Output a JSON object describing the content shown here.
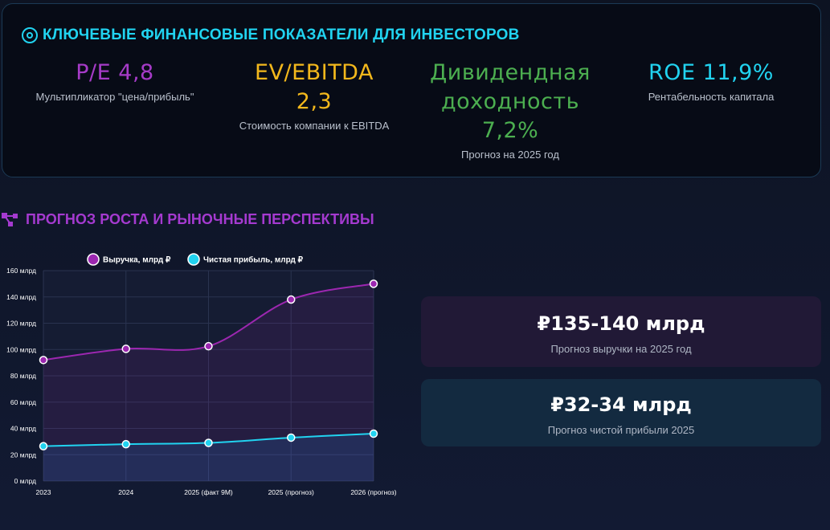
{
  "kpi_section": {
    "title": "КЛЮЧЕВЫЕ ФИНАНСОВЫЕ ПОКАЗАТЕЛИ ДЛЯ ИНВЕСТОРОВ",
    "icon": "target-icon",
    "items": [
      {
        "value_lines": [
          "P/E 4,8"
        ],
        "desc": "Мультипликатор \"цена/прибыль\"",
        "color": "#a63bc8"
      },
      {
        "value_lines": [
          "EV/EBITDA",
          "2,3"
        ],
        "desc": "Стоимость компании к EBITDA",
        "color": "#f3b81c"
      },
      {
        "value_lines": [
          "Дивидендная",
          "доходность",
          "7,2%"
        ],
        "desc": "Прогноз на 2025 год",
        "color": "#4caf50"
      },
      {
        "value_lines": [
          "ROE 11,9%"
        ],
        "desc": "Рентабельность капитала",
        "color": "#21d3f0"
      }
    ]
  },
  "growth_section": {
    "title": "ПРОГНОЗ РОСТА И РЫНОЧНЫЕ ПЕРСПЕКТИВЫ",
    "icon": "share-nodes-icon"
  },
  "chart_data": {
    "type": "line",
    "categories": [
      "2023",
      "2024",
      "2025 (факт 9М)",
      "2025 (прогноз)",
      "2026 (прогноз)"
    ],
    "series": [
      {
        "name": "Выручка, млрд ₽",
        "values": [
          92,
          100.5,
          102.5,
          138,
          150
        ],
        "color": "#9c27b0"
      },
      {
        "name": "Чистая прибыль, млрд ₽",
        "values": [
          26.5,
          28,
          29,
          33,
          36
        ],
        "color": "#21d3f0"
      }
    ],
    "ylim": [
      0,
      160
    ],
    "yticks": [
      0,
      20,
      40,
      60,
      80,
      100,
      120,
      140,
      160
    ],
    "ytick_labels": [
      "0 млрд",
      "20 млрд",
      "40 млрд",
      "60 млрд",
      "80 млрд",
      "100 млрд",
      "120 млрд",
      "140 млрд",
      "160 млрд"
    ],
    "legend_position": "top",
    "grid": true
  },
  "forecasts": [
    {
      "value": "₽135-140 млрд",
      "label": "Прогноз выручки на 2025 год",
      "bg": "#211936"
    },
    {
      "value": "₽32-34 млрд",
      "label": "Прогноз чистой прибыли 2025",
      "bg": "#132a40"
    }
  ]
}
